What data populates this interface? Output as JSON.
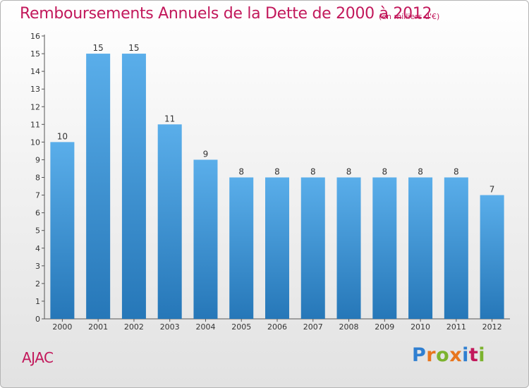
{
  "title": "Remboursements Annuels de la Dette de 2000 à 2012",
  "subtitle": "(en milliers d'€)",
  "commune": "AJAC",
  "logo": {
    "text": "Proxiti",
    "letter_colors": [
      "#2f7fd1",
      "#e8761e",
      "#7cb32e",
      "#e8761e",
      "#2f7fd1",
      "#c2185b",
      "#7cb32e"
    ]
  },
  "colors": {
    "bar_top": "#5aaeea",
    "bar_bottom": "#2677b8",
    "title": "#c2185b",
    "axis_text": "#333333"
  },
  "chart_data": {
    "type": "bar",
    "categories": [
      "2000",
      "2001",
      "2002",
      "2003",
      "2004",
      "2005",
      "2006",
      "2007",
      "2008",
      "2009",
      "2010",
      "2011",
      "2012"
    ],
    "values": [
      10,
      15,
      15,
      11,
      9,
      8,
      8,
      8,
      8,
      8,
      8,
      8,
      7
    ],
    "data_labels": [
      "10",
      "15",
      "15",
      "11",
      "9",
      "8",
      "8",
      "8",
      "8",
      "8",
      "8",
      "8",
      "7"
    ],
    "yticks": [
      "0",
      "1",
      "2",
      "3",
      "4",
      "5",
      "6",
      "7",
      "8",
      "9",
      "10",
      "11",
      "12",
      "13",
      "14",
      "15",
      "16"
    ],
    "ylim": [
      0,
      16
    ],
    "grid": false,
    "legend": "none"
  }
}
